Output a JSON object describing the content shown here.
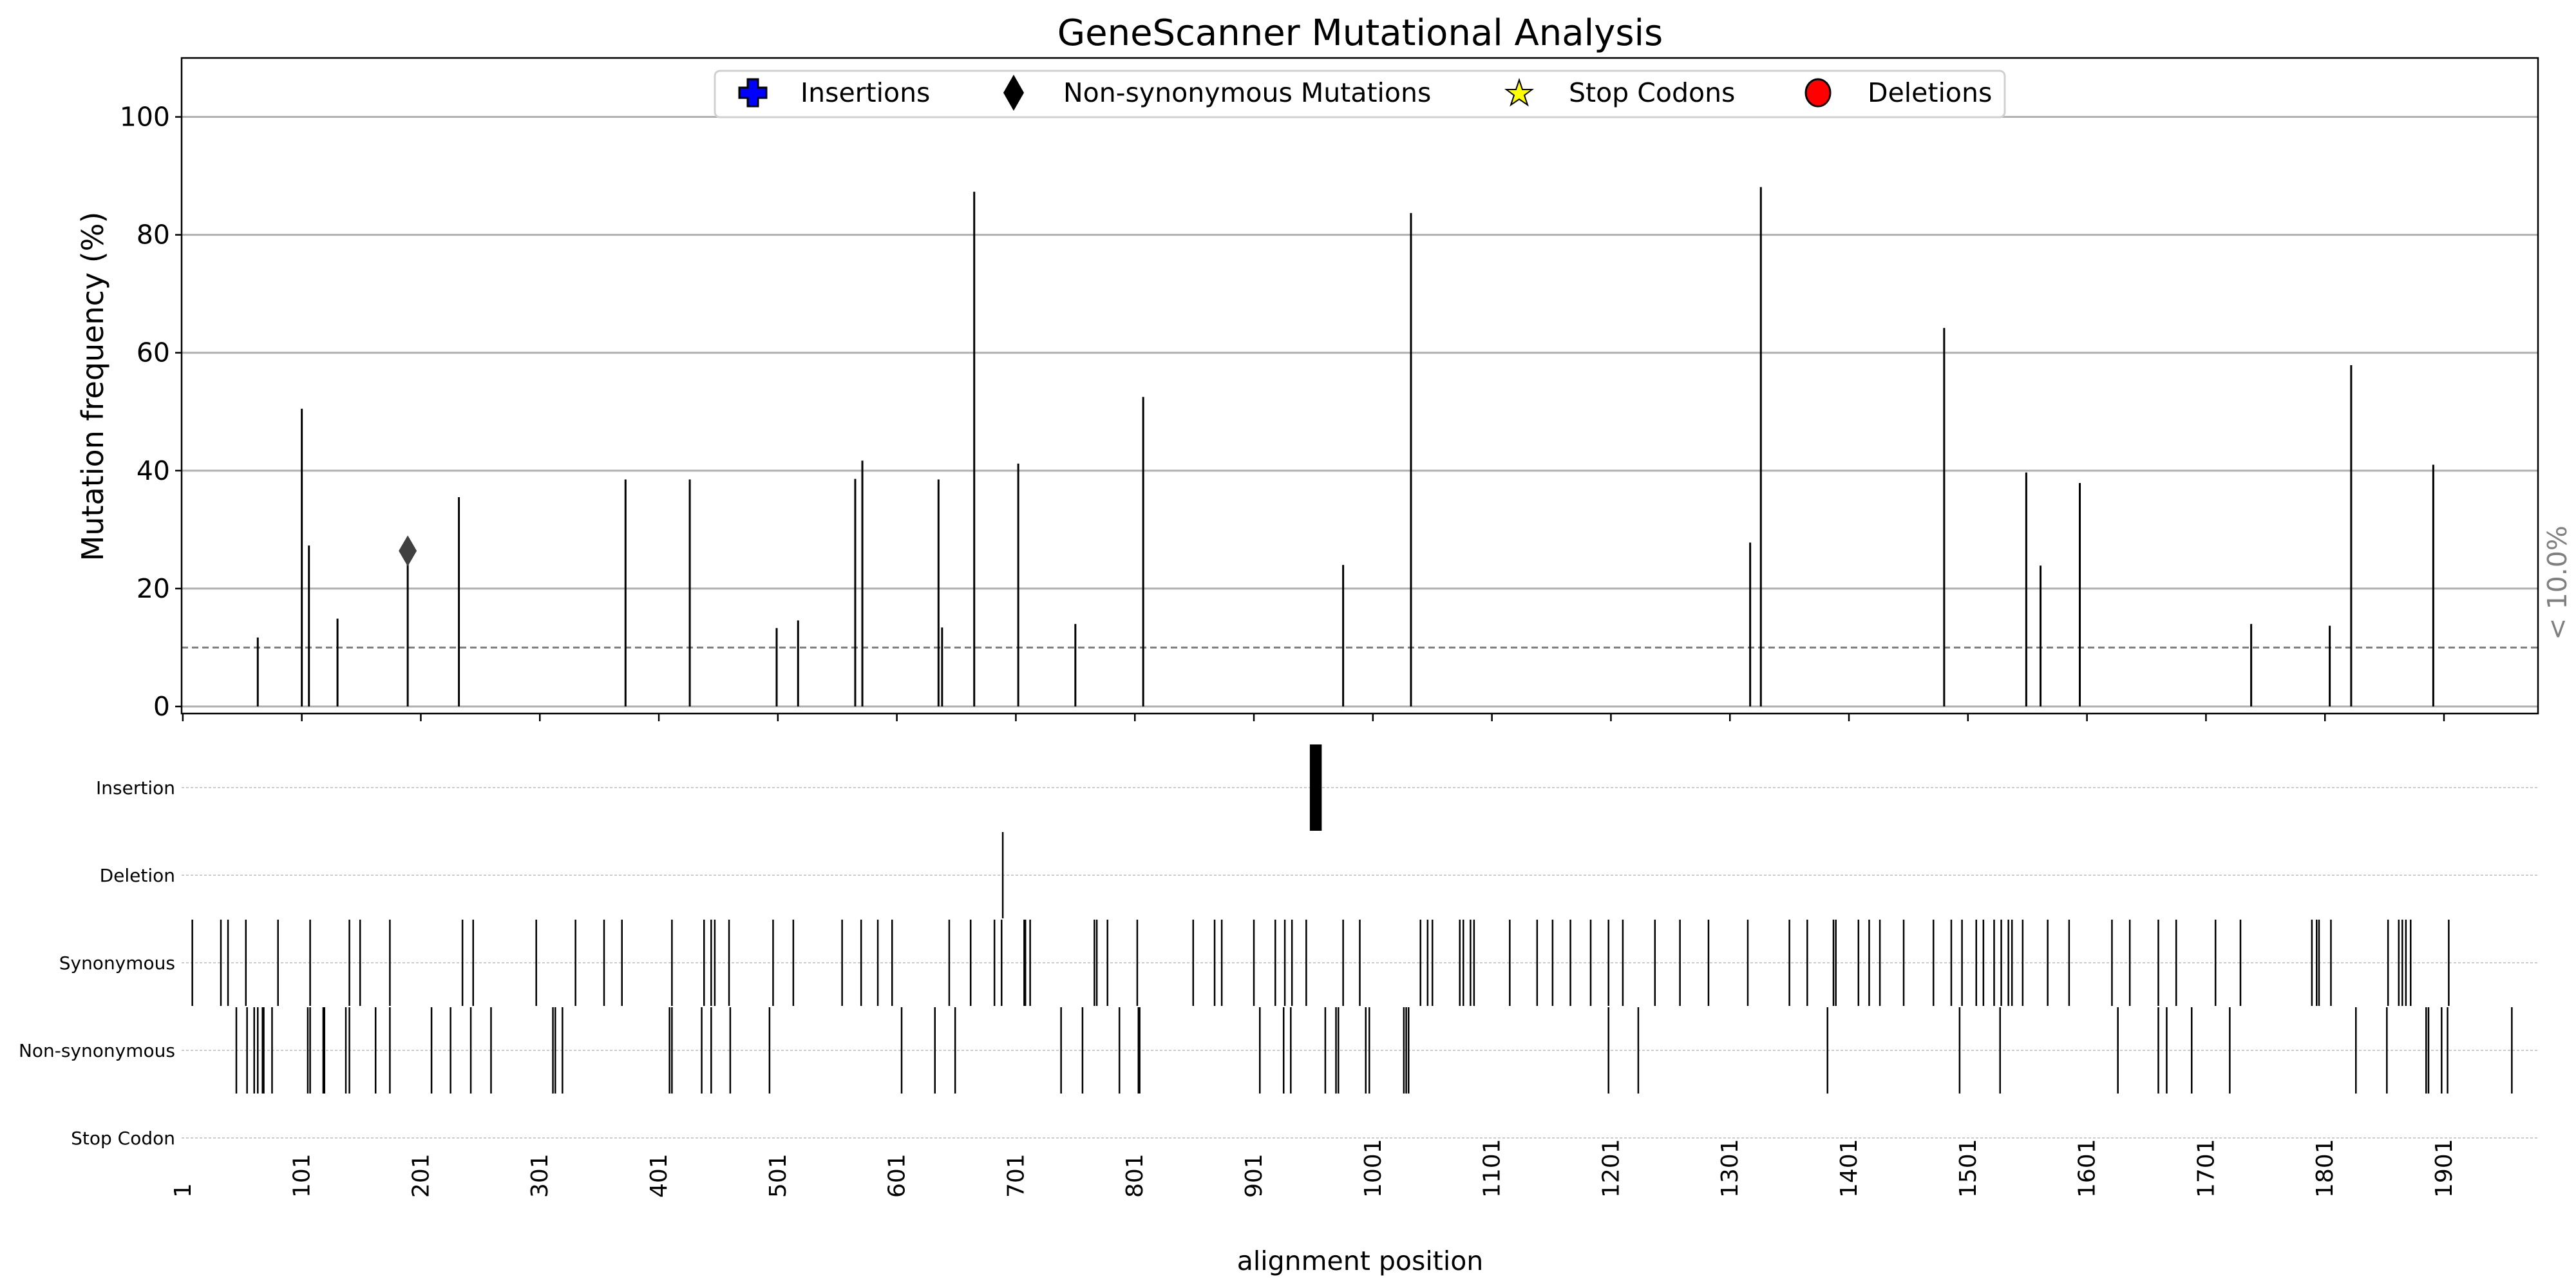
{
  "chart_data": [
    {
      "type": "bar",
      "title": "GeneScanner Mutational Analysis",
      "xlabel": "",
      "ylabel": "Mutation frequency (%)",
      "xlim": [
        0,
        1980
      ],
      "ylim": [
        -1.2,
        110
      ],
      "yticks": [
        0,
        20,
        40,
        60,
        80,
        100
      ],
      "xticks": [
        1,
        101,
        201,
        301,
        401,
        501,
        601,
        701,
        801,
        901,
        1001,
        1101,
        1201,
        1301,
        1401,
        1501,
        1601,
        1701,
        1801,
        1901
      ],
      "grid": "horizontal",
      "threshold": {
        "value": 10,
        "label": "< 10.0%",
        "color": "#808080"
      },
      "legend": {
        "placement": "top-center",
        "entries": [
          {
            "label": "Insertions",
            "marker": "plus",
            "color": "#0000ff"
          },
          {
            "label": "Non-synonymous Mutations",
            "marker": "diamond",
            "color": "#000000"
          },
          {
            "label": "Stop Codons",
            "marker": "star",
            "color": "#ffff00"
          },
          {
            "label": "Deletions",
            "marker": "circle",
            "color": "#ff0000"
          }
        ]
      },
      "points": [
        {
          "x": 64,
          "y": 11.7
        },
        {
          "x": 101,
          "y": 50.5
        },
        {
          "x": 107,
          "y": 27.3
        },
        {
          "x": 131,
          "y": 14.9
        },
        {
          "x": 190,
          "y": 24.5
        },
        {
          "x": 233,
          "y": 35.5
        },
        {
          "x": 373,
          "y": 38.5
        },
        {
          "x": 427,
          "y": 38.5
        },
        {
          "x": 500,
          "y": 13.3
        },
        {
          "x": 518,
          "y": 14.6
        },
        {
          "x": 566,
          "y": 38.6
        },
        {
          "x": 572,
          "y": 41.7
        },
        {
          "x": 636,
          "y": 38.5
        },
        {
          "x": 639,
          "y": 13.4
        },
        {
          "x": 666,
          "y": 87.3
        },
        {
          "x": 703,
          "y": 41.2
        },
        {
          "x": 751,
          "y": 14.0
        },
        {
          "x": 808,
          "y": 52.5
        },
        {
          "x": 976,
          "y": 24.0
        },
        {
          "x": 1033,
          "y": 83.7
        },
        {
          "x": 1318,
          "y": 27.8
        },
        {
          "x": 1327,
          "y": 88.1
        },
        {
          "x": 1481,
          "y": 64.2
        },
        {
          "x": 1550,
          "y": 39.7
        },
        {
          "x": 1562,
          "y": 23.9
        },
        {
          "x": 1595,
          "y": 37.9
        },
        {
          "x": 1739,
          "y": 14.0
        },
        {
          "x": 1805,
          "y": 13.7
        },
        {
          "x": 1823,
          "y": 57.9
        },
        {
          "x": 1892,
          "y": 41.0
        }
      ],
      "markers": [
        {
          "x": 190,
          "y": 26.4,
          "marker": "diamond",
          "color": "#404040"
        }
      ]
    },
    {
      "type": "event-track",
      "xlabel": "alignment position",
      "xlim": [
        0,
        1980
      ],
      "xticks": [
        1,
        101,
        201,
        301,
        401,
        501,
        601,
        701,
        801,
        901,
        1001,
        1101,
        1201,
        1301,
        1401,
        1501,
        1601,
        1701,
        1801,
        1901
      ],
      "tracks": [
        {
          "name": "Insertion",
          "ranges": [
            [
              948,
              958
            ]
          ]
        },
        {
          "name": "Deletion",
          "positions": [
            690
          ]
        },
        {
          "name": "Synonymous",
          "positions": [
            9,
            33,
            39,
            54,
            81,
            108,
            141,
            150,
            175,
            236,
            245,
            298,
            331,
            355,
            370,
            412,
            439,
            445,
            448,
            460,
            497,
            514,
            555,
            571,
            585,
            597,
            645,
            663,
            683,
            689,
            708,
            709,
            713,
            767,
            769,
            778,
            803,
            850,
            868,
            874,
            901,
            919,
            927,
            933,
            945,
            976,
            990,
            1041,
            1047,
            1051,
            1074,
            1077,
            1083,
            1086,
            1116,
            1139,
            1152,
            1167,
            1184,
            1199,
            1211,
            1238,
            1259,
            1283,
            1316,
            1351,
            1366,
            1388,
            1390,
            1409,
            1418,
            1427,
            1447,
            1472,
            1487,
            1496,
            1508,
            1514,
            1523,
            1529,
            1535,
            1538,
            1547,
            1568,
            1586,
            1622,
            1637,
            1661,
            1676,
            1709,
            1730,
            1790,
            1794,
            1796,
            1806,
            1854,
            1863,
            1866,
            1869,
            1873,
            1905
          ]
        },
        {
          "name": "Non-synonymous",
          "positions": [
            46,
            55,
            61,
            64,
            68,
            69,
            76,
            106,
            108,
            119,
            120,
            138,
            141,
            163,
            175,
            210,
            226,
            243,
            260,
            312,
            314,
            320,
            410,
            412,
            437,
            445,
            461,
            494,
            605,
            633,
            650,
            739,
            757,
            788,
            804,
            805,
            906,
            926,
            932,
            961,
            970,
            972,
            995,
            998,
            1027,
            1029,
            1031,
            1199,
            1224,
            1383,
            1494,
            1528,
            1627,
            1661,
            1668,
            1689,
            1721,
            1827,
            1853,
            1886,
            1888,
            1899,
            1904,
            1958
          ]
        },
        {
          "name": "Stop Codon",
          "positions": []
        }
      ]
    }
  ]
}
